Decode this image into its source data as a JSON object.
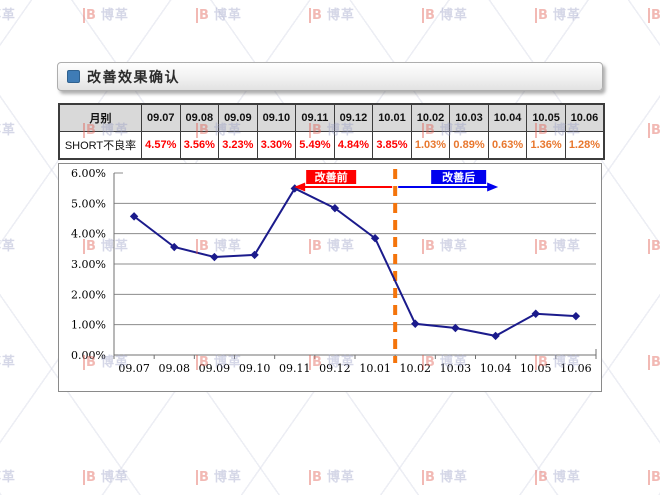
{
  "watermark": {
    "brand_letter": "B",
    "brand_text": "博革"
  },
  "header": {
    "title": "改善效果确认",
    "bullet_color": "#3f7cb6"
  },
  "table": {
    "first_col_header": "月别",
    "row_label": "SHORT不良率",
    "months": [
      "09.07",
      "09.08",
      "09.09",
      "09.10",
      "09.11",
      "09.12",
      "10.01",
      "10.02",
      "10.03",
      "10.04",
      "10.05",
      "10.06"
    ],
    "values": [
      "4.57%",
      "3.56%",
      "3.23%",
      "3.30%",
      "5.49%",
      "4.84%",
      "3.85%",
      "1.03%",
      "0.89%",
      "0.63%",
      "1.36%",
      "1.28%"
    ],
    "before_count": 7,
    "before_color": "#ff0000",
    "after_color": "#e8772e"
  },
  "chart_data": {
    "type": "line",
    "categories": [
      "09.07",
      "09.08",
      "09.09",
      "09.10",
      "09.11",
      "09.12",
      "10.01",
      "10.02",
      "10.03",
      "10.04",
      "10.05",
      "10.06"
    ],
    "series": [
      {
        "name": "SHORT不良率",
        "values": [
          4.57,
          3.56,
          3.23,
          3.3,
          5.49,
          4.84,
          3.85,
          1.03,
          0.89,
          0.63,
          1.36,
          1.28
        ],
        "color": "#1b1b8c",
        "marker": "diamond"
      }
    ],
    "title": "",
    "xlabel": "",
    "ylabel": "",
    "ylim": [
      0,
      6
    ],
    "ytick_step": 1,
    "ytick_labels": [
      "0.00%",
      "1.00%",
      "2.00%",
      "3.00%",
      "4.00%",
      "5.00%",
      "6.00%"
    ],
    "grid": true,
    "grid_color": "#8c8c8c",
    "legend_position": "none",
    "annotations": {
      "divider_after_category": "10.01",
      "divider_color": "#f4740b",
      "before": {
        "text": "改善前",
        "bg": "#ff0000",
        "fg": "#ffffff"
      },
      "after": {
        "text": "改善后",
        "bg": "#0000ee",
        "fg": "#ffffff"
      }
    }
  }
}
